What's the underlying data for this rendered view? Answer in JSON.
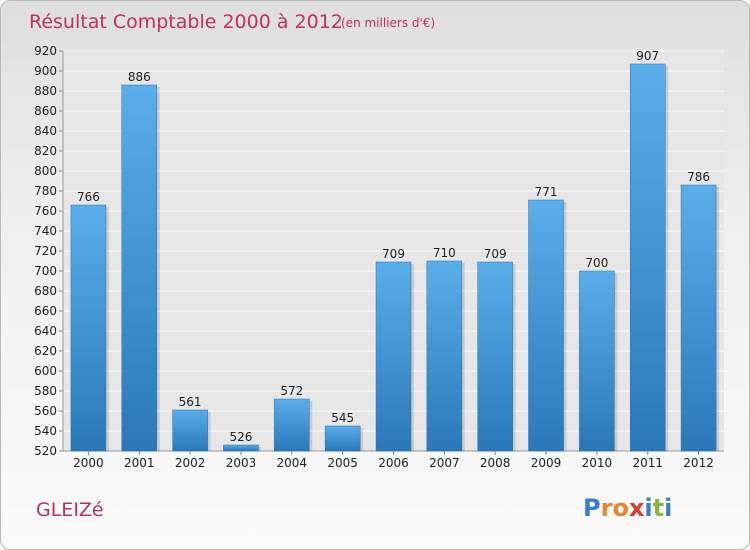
{
  "chart_data": {
    "type": "bar",
    "title": "Résultat Comptable 2000 à 2012",
    "subtitle": "(en milliers d'€)",
    "categories": [
      "2000",
      "2001",
      "2002",
      "2003",
      "2004",
      "2005",
      "2006",
      "2007",
      "2008",
      "2009",
      "2010",
      "2011",
      "2012"
    ],
    "values": [
      766,
      886,
      561,
      526,
      572,
      545,
      709,
      710,
      709,
      771,
      700,
      907,
      786
    ],
    "ylim": [
      520,
      920
    ],
    "ytick_step": 20,
    "grid": true,
    "xlabel": "",
    "ylabel": ""
  },
  "place_name": "GLEIZé",
  "logo": {
    "letters": [
      "P",
      "r",
      "o",
      "x",
      "i",
      "t",
      "i"
    ],
    "colors": [
      "#3a7fc1",
      "#e8862c",
      "#e8862c",
      "#d93a2b",
      "#3a7fc1",
      "#8ab53a",
      "#3a7fc1"
    ]
  },
  "colors": {
    "bar_light": "#5aaeea",
    "bar_dark": "#2a78b8",
    "title": "#c0305a"
  }
}
